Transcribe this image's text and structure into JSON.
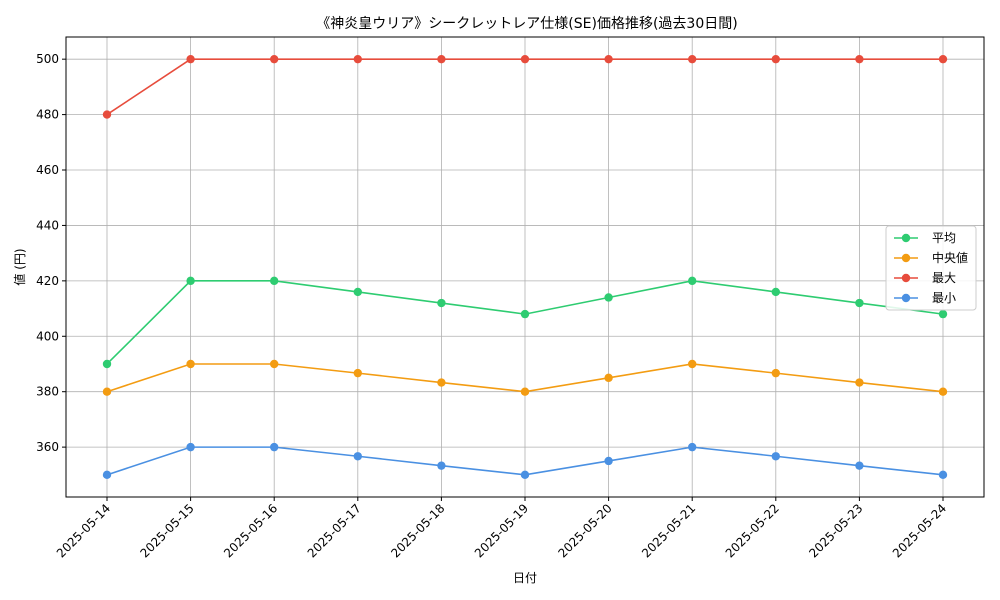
{
  "chart_data": {
    "type": "line",
    "title": "《神炎皇ウリア》シークレットレア仕様(SE)価格推移(過去30日間)",
    "xlabel": "日付",
    "ylabel": "値 (円)",
    "categories": [
      "2025-05-14",
      "2025-05-15",
      "2025-05-16",
      "2025-05-17",
      "2025-05-18",
      "2025-05-19",
      "2025-05-20",
      "2025-05-21",
      "2025-05-22",
      "2025-05-23",
      "2025-05-24"
    ],
    "ylim": [
      342,
      508
    ],
    "yticks": [
      360,
      380,
      400,
      420,
      440,
      460,
      480,
      500
    ],
    "grid": true,
    "legend_position": "center-right",
    "series": [
      {
        "name": "平均",
        "color": "#2ecc71",
        "values": [
          390,
          420,
          420,
          416,
          412,
          408,
          414,
          420,
          416,
          412,
          408
        ]
      },
      {
        "name": "中央値",
        "color": "#f39c12",
        "values": [
          380,
          390,
          390,
          386.7,
          383.3,
          380,
          385,
          390,
          386.7,
          383.3,
          380
        ]
      },
      {
        "name": "最大",
        "color": "#e74c3c",
        "values": [
          480,
          500,
          500,
          500,
          500,
          500,
          500,
          500,
          500,
          500,
          500
        ]
      },
      {
        "name": "最小",
        "color": "#4a90e2",
        "values": [
          350,
          360,
          360,
          356.7,
          353.3,
          350,
          355,
          360,
          356.7,
          353.3,
          350
        ]
      }
    ]
  }
}
